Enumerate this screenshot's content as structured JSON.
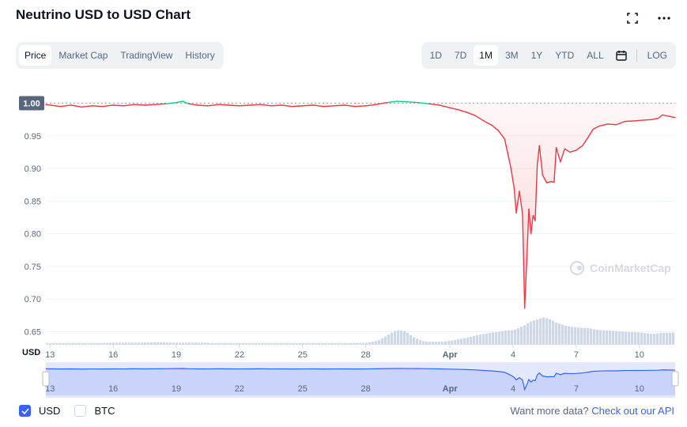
{
  "title": "Neutrino USD to USD Chart",
  "left_tabs": [
    "Price",
    "Market Cap",
    "TradingView",
    "History"
  ],
  "right_tabs": [
    "1D",
    "7D",
    "1M",
    "3M",
    "1Y",
    "YTD",
    "ALL"
  ],
  "log_label": "LOG",
  "watermark": "CoinMarketCap",
  "legend": {
    "usd": "USD",
    "btc": "BTC"
  },
  "api_text": "Want more data?",
  "api_link": "Check out our API",
  "colors": {
    "up": "#16c784",
    "down": "#ea3943",
    "accent": "#3861fb",
    "volume": "#cfd6e4"
  },
  "chart_data": {
    "type": "line",
    "axis_unit": "USD",
    "current_price_label": "1.00",
    "baseline": 1.0,
    "ylim": [
      0.63,
      1.02
    ],
    "yticks": [
      "0.65",
      "0.70",
      "0.75",
      "0.80",
      "0.85",
      "0.90",
      "0.95"
    ],
    "xticks": [
      {
        "label": "13",
        "day": 0
      },
      {
        "label": "16",
        "day": 3
      },
      {
        "label": "19",
        "day": 6
      },
      {
        "label": "22",
        "day": 9
      },
      {
        "label": "25",
        "day": 12
      },
      {
        "label": "28",
        "day": 15
      },
      {
        "label": "Apr",
        "day": 19
      },
      {
        "label": "4",
        "day": 22
      },
      {
        "label": "7",
        "day": 25
      },
      {
        "label": "10",
        "day": 28
      }
    ],
    "price": [
      [
        -0.2,
        0.998
      ],
      [
        0.5,
        0.995
      ],
      [
        1.0,
        0.997
      ],
      [
        1.5,
        0.994
      ],
      [
        2.0,
        0.996
      ],
      [
        2.5,
        0.995
      ],
      [
        3.0,
        0.997
      ],
      [
        3.5,
        0.996
      ],
      [
        4.0,
        0.998
      ],
      [
        4.5,
        0.997
      ],
      [
        5.0,
        0.998
      ],
      [
        5.5,
        0.999
      ],
      [
        6.0,
        1.001
      ],
      [
        6.3,
        1.003
      ],
      [
        6.6,
        0.999
      ],
      [
        7.0,
        0.997
      ],
      [
        7.5,
        0.996
      ],
      [
        8.0,
        0.998
      ],
      [
        8.5,
        0.997
      ],
      [
        9.0,
        0.996
      ],
      [
        9.5,
        0.997
      ],
      [
        10.0,
        0.998
      ],
      [
        10.5,
        0.996
      ],
      [
        11.0,
        0.997
      ],
      [
        11.5,
        0.995
      ],
      [
        12.0,
        0.996
      ],
      [
        12.5,
        0.997
      ],
      [
        13.0,
        0.995
      ],
      [
        13.5,
        0.996
      ],
      [
        14.0,
        0.997
      ],
      [
        14.5,
        0.995
      ],
      [
        15.0,
        0.996
      ],
      [
        15.5,
        0.998
      ],
      [
        16.0,
        1.001
      ],
      [
        16.5,
        1.003
      ],
      [
        17.0,
        1.002
      ],
      [
        17.5,
        1.001
      ],
      [
        18.0,
        0.999
      ],
      [
        18.5,
        0.997
      ],
      [
        19.0,
        0.993
      ],
      [
        19.4,
        0.99
      ],
      [
        19.8,
        0.986
      ],
      [
        20.2,
        0.981
      ],
      [
        20.6,
        0.973
      ],
      [
        21.0,
        0.966
      ],
      [
        21.3,
        0.958
      ],
      [
        21.6,
        0.945
      ],
      [
        21.9,
        0.9
      ],
      [
        22.05,
        0.87
      ],
      [
        22.15,
        0.832
      ],
      [
        22.3,
        0.865
      ],
      [
        22.45,
        0.83
      ],
      [
        22.55,
        0.686
      ],
      [
        22.65,
        0.758
      ],
      [
        22.75,
        0.838
      ],
      [
        22.85,
        0.8
      ],
      [
        22.95,
        0.828
      ],
      [
        23.05,
        0.82
      ],
      [
        23.15,
        0.906
      ],
      [
        23.25,
        0.935
      ],
      [
        23.4,
        0.89
      ],
      [
        23.6,
        0.878
      ],
      [
        23.8,
        0.88
      ],
      [
        23.95,
        0.879
      ],
      [
        24.05,
        0.932
      ],
      [
        24.25,
        0.91
      ],
      [
        24.45,
        0.93
      ],
      [
        24.7,
        0.925
      ],
      [
        25.0,
        0.928
      ],
      [
        25.3,
        0.935
      ],
      [
        25.55,
        0.947
      ],
      [
        25.8,
        0.96
      ],
      [
        26.1,
        0.965
      ],
      [
        26.5,
        0.968
      ],
      [
        26.9,
        0.967
      ],
      [
        27.3,
        0.972
      ],
      [
        27.8,
        0.973
      ],
      [
        28.2,
        0.974
      ],
      [
        28.6,
        0.975
      ],
      [
        28.9,
        0.977
      ],
      [
        29.1,
        0.982
      ],
      [
        29.4,
        0.98
      ],
      [
        29.7,
        0.978
      ]
    ],
    "volume": [
      [
        -0.2,
        0.03
      ],
      [
        1,
        0.03
      ],
      [
        2,
        0.03
      ],
      [
        3,
        0.04
      ],
      [
        4,
        0.04
      ],
      [
        5,
        0.05
      ],
      [
        6,
        0.04
      ],
      [
        7,
        0.04
      ],
      [
        8,
        0.03
      ],
      [
        9,
        0.03
      ],
      [
        10,
        0.03
      ],
      [
        11,
        0.03
      ],
      [
        12,
        0.03
      ],
      [
        13,
        0.03
      ],
      [
        14,
        0.03
      ],
      [
        15,
        0.04
      ],
      [
        15.5,
        0.08
      ],
      [
        16.0,
        0.2
      ],
      [
        16.4,
        0.3
      ],
      [
        16.8,
        0.28
      ],
      [
        17.2,
        0.16
      ],
      [
        17.6,
        0.08
      ],
      [
        18,
        0.06
      ],
      [
        18.6,
        0.06
      ],
      [
        19.2,
        0.1
      ],
      [
        19.8,
        0.15
      ],
      [
        20.4,
        0.21
      ],
      [
        21,
        0.25
      ],
      [
        21.6,
        0.29
      ],
      [
        22,
        0.3
      ],
      [
        22.5,
        0.4
      ],
      [
        22.8,
        0.48
      ],
      [
        23.1,
        0.52
      ],
      [
        23.4,
        0.56
      ],
      [
        23.7,
        0.52
      ],
      [
        24,
        0.45
      ],
      [
        24.5,
        0.38
      ],
      [
        25,
        0.35
      ],
      [
        25.5,
        0.34
      ],
      [
        26,
        0.3
      ],
      [
        26.5,
        0.29
      ],
      [
        27,
        0.27
      ],
      [
        27.5,
        0.26
      ],
      [
        28,
        0.25
      ],
      [
        28.5,
        0.22
      ],
      [
        29,
        0.24
      ],
      [
        29.7,
        0.25
      ]
    ]
  }
}
